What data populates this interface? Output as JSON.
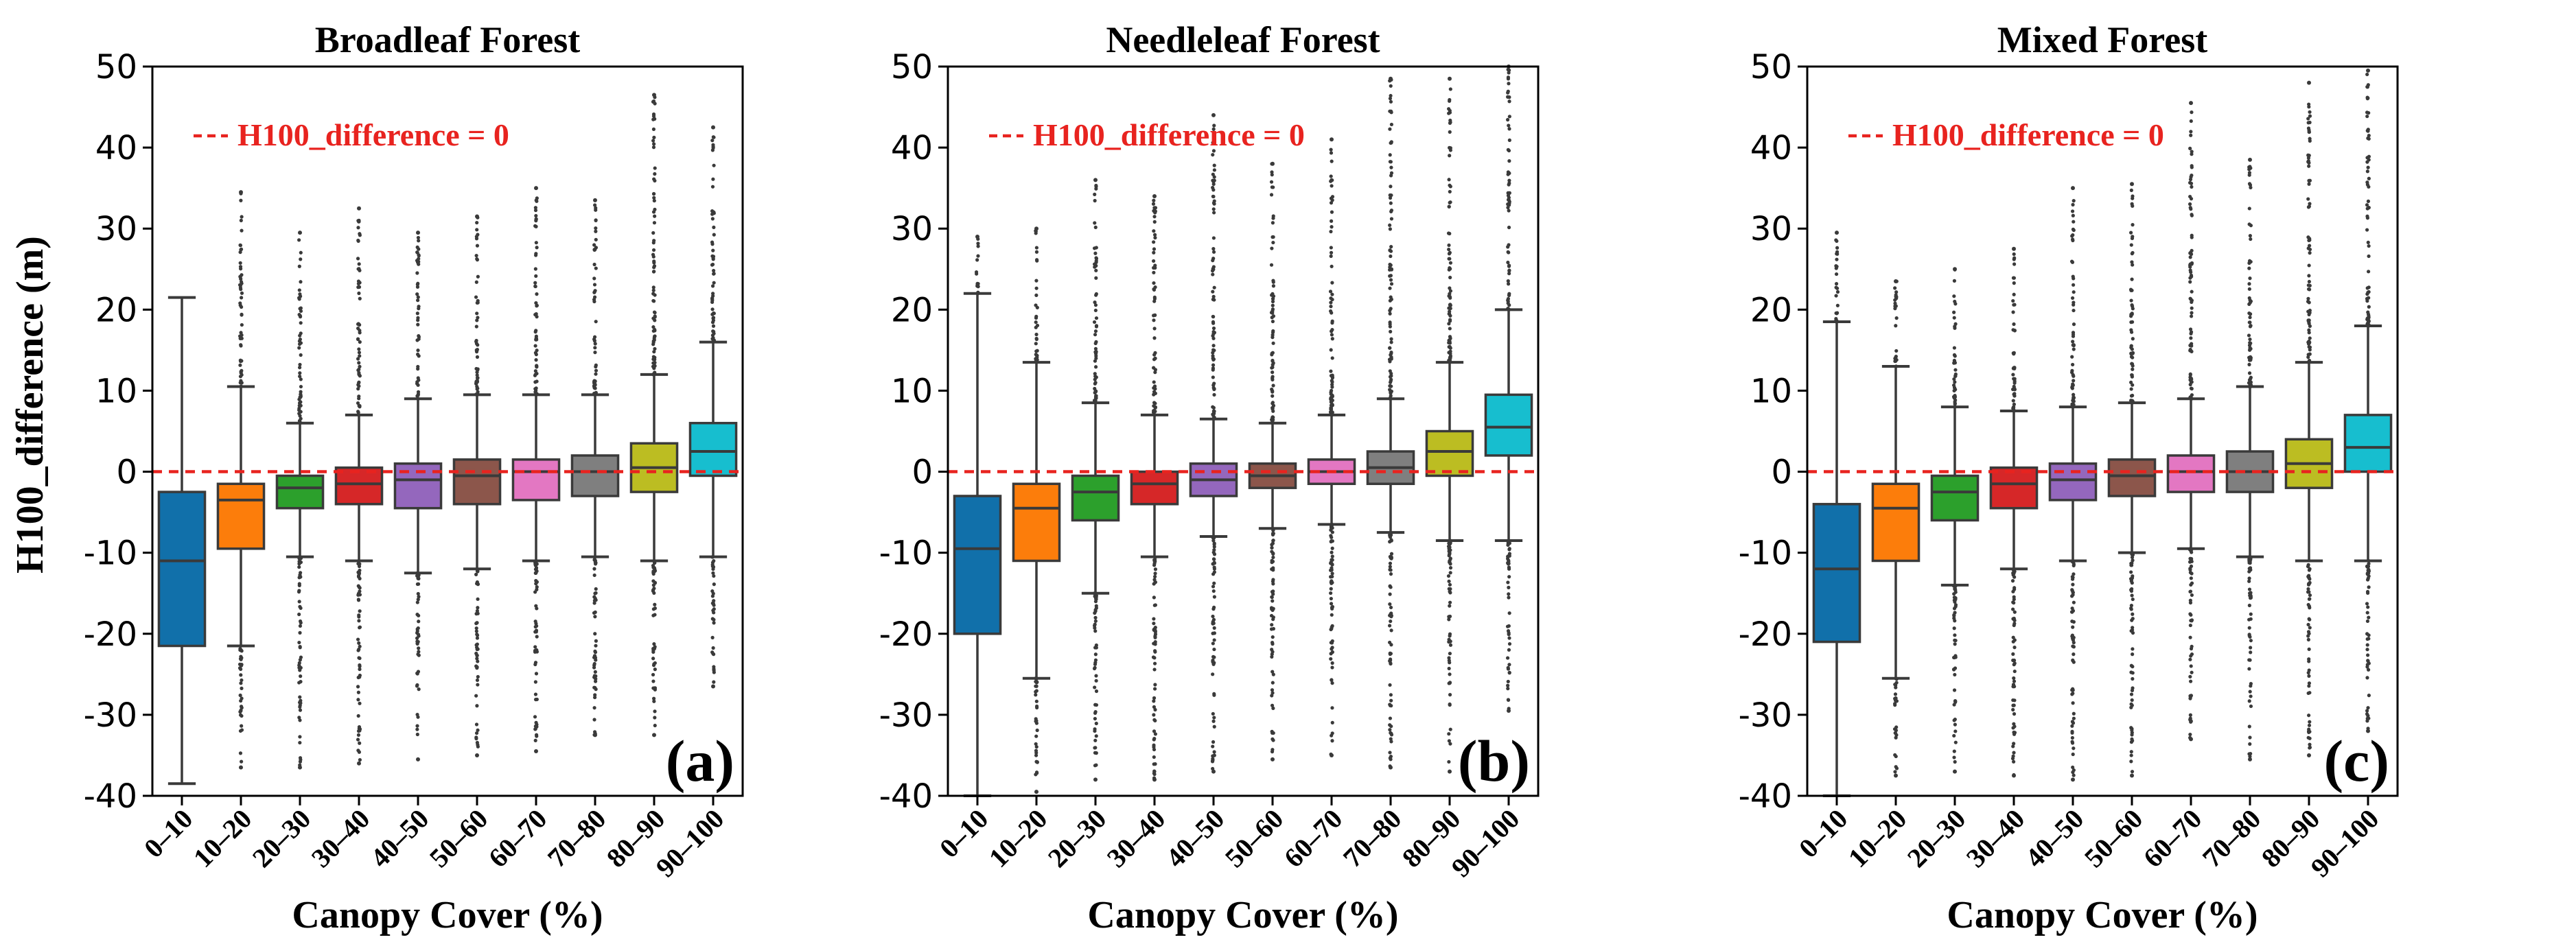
{
  "figure": {
    "ylabel": "H100_difference (m)",
    "xlabel": "Canopy Cover (%)",
    "legend_label": "H100_difference = 0",
    "reference_line_color": "#e8231f"
  },
  "chart_data": [
    {
      "type": "box",
      "title": "Broadleaf Forest",
      "panel_label": "(a)",
      "xlabel": "Canopy Cover (%)",
      "ylabel": "H100_difference (m)",
      "ylim": [
        -40,
        50
      ],
      "yticks": [
        -40,
        -30,
        -20,
        -10,
        0,
        10,
        20,
        30,
        40,
        50
      ],
      "categories": [
        "0–10",
        "10–20",
        "20–30",
        "30–40",
        "40–50",
        "50–60",
        "60–70",
        "70–80",
        "80–90",
        "90–100"
      ],
      "colors": [
        "#1170aa",
        "#fc7d0b",
        "#2ca02c",
        "#d62728",
        "#9467bd",
        "#8c564b",
        "#e377c2",
        "#7f7f7f",
        "#bcbd22",
        "#17becf"
      ],
      "boxes": [
        {
          "q1": -21.5,
          "median": -11,
          "q3": -2.5,
          "whisker_low": -38.5,
          "whisker_high": 21.5,
          "outlier_low": null,
          "outlier_high": null
        },
        {
          "q1": -9.5,
          "median": -3.5,
          "q3": -1.5,
          "whisker_low": -21.5,
          "whisker_high": 10.5,
          "outlier_low": -36.5,
          "outlier_high": 34.5
        },
        {
          "q1": -4.5,
          "median": -2,
          "q3": -0.5,
          "whisker_low": -10.5,
          "whisker_high": 6,
          "outlier_low": -36.5,
          "outlier_high": 29.5
        },
        {
          "q1": -4,
          "median": -1.5,
          "q3": 0.5,
          "whisker_low": -11,
          "whisker_high": 7,
          "outlier_low": -36,
          "outlier_high": 32.5
        },
        {
          "q1": -4.5,
          "median": -1,
          "q3": 1,
          "whisker_low": -12.5,
          "whisker_high": 9,
          "outlier_low": -35.5,
          "outlier_high": 29.5
        },
        {
          "q1": -4,
          "median": -0.5,
          "q3": 1.5,
          "whisker_low": -12,
          "whisker_high": 9.5,
          "outlier_low": -35,
          "outlier_high": 31.5
        },
        {
          "q1": -3.5,
          "median": 0,
          "q3": 1.5,
          "whisker_low": -11,
          "whisker_high": 9.5,
          "outlier_low": -34.5,
          "outlier_high": 35
        },
        {
          "q1": -3,
          "median": 0,
          "q3": 2,
          "whisker_low": -10.5,
          "whisker_high": 9.5,
          "outlier_low": -32.5,
          "outlier_high": 33.5
        },
        {
          "q1": -2.5,
          "median": 0.5,
          "q3": 3.5,
          "whisker_low": -11,
          "whisker_high": 12,
          "outlier_low": -32.5,
          "outlier_high": 46.5
        },
        {
          "q1": -0.5,
          "median": 2.5,
          "q3": 6,
          "whisker_low": -10.5,
          "whisker_high": 16,
          "outlier_low": -26.5,
          "outlier_high": 42.5
        }
      ]
    },
    {
      "type": "box",
      "title": "Needleleaf Forest",
      "panel_label": "(b)",
      "xlabel": "Canopy Cover (%)",
      "ylabel": "H100_difference (m)",
      "ylim": [
        -40,
        50
      ],
      "yticks": [
        -40,
        -30,
        -20,
        -10,
        0,
        10,
        20,
        30,
        40,
        50
      ],
      "categories": [
        "0–10",
        "10–20",
        "20–30",
        "30–40",
        "40–50",
        "50–60",
        "60–70",
        "70–80",
        "80–90",
        "90–100"
      ],
      "colors": [
        "#1170aa",
        "#fc7d0b",
        "#2ca02c",
        "#d62728",
        "#9467bd",
        "#8c564b",
        "#e377c2",
        "#7f7f7f",
        "#bcbd22",
        "#17becf"
      ],
      "boxes": [
        {
          "q1": -20,
          "median": -9.5,
          "q3": -3,
          "whisker_low": -40,
          "whisker_high": 22,
          "outlier_low": null,
          "outlier_high": 29
        },
        {
          "q1": -11,
          "median": -4.5,
          "q3": -1.5,
          "whisker_low": -25.5,
          "whisker_high": 13.5,
          "outlier_low": -39.5,
          "outlier_high": 30
        },
        {
          "q1": -6,
          "median": -2.5,
          "q3": -0.5,
          "whisker_low": -15,
          "whisker_high": 8.5,
          "outlier_low": -38,
          "outlier_high": 36
        },
        {
          "q1": -4,
          "median": -1.5,
          "q3": 0,
          "whisker_low": -10.5,
          "whisker_high": 7,
          "outlier_low": -38,
          "outlier_high": 34
        },
        {
          "q1": -3,
          "median": -1,
          "q3": 1,
          "whisker_low": -8,
          "whisker_high": 6.5,
          "outlier_low": -37,
          "outlier_high": 44
        },
        {
          "q1": -2,
          "median": -0.5,
          "q3": 1,
          "whisker_low": -7,
          "whisker_high": 6,
          "outlier_low": -35.5,
          "outlier_high": 38
        },
        {
          "q1": -1.5,
          "median": 0,
          "q3": 1.5,
          "whisker_low": -6.5,
          "whisker_high": 7,
          "outlier_low": -35,
          "outlier_high": 41
        },
        {
          "q1": -1.5,
          "median": 0.5,
          "q3": 2.5,
          "whisker_low": -7.5,
          "whisker_high": 9,
          "outlier_low": -36.5,
          "outlier_high": 48.5
        },
        {
          "q1": -0.5,
          "median": 2.5,
          "q3": 5,
          "whisker_low": -8.5,
          "whisker_high": 13.5,
          "outlier_low": -37,
          "outlier_high": 48.5
        },
        {
          "q1": 2,
          "median": 5.5,
          "q3": 9.5,
          "whisker_low": -8.5,
          "whisker_high": 20,
          "outlier_low": -29.5,
          "outlier_high": 50
        }
      ]
    },
    {
      "type": "box",
      "title": "Mixed Forest",
      "panel_label": "(c)",
      "xlabel": "Canopy Cover (%)",
      "ylabel": "H100_difference (m)",
      "ylim": [
        -40,
        50
      ],
      "yticks": [
        -40,
        -30,
        -20,
        -10,
        0,
        10,
        20,
        30,
        40,
        50
      ],
      "categories": [
        "0–10",
        "10–20",
        "20–30",
        "30–40",
        "40–50",
        "50–60",
        "60–70",
        "70–80",
        "80–90",
        "90–100"
      ],
      "colors": [
        "#1170aa",
        "#fc7d0b",
        "#2ca02c",
        "#d62728",
        "#9467bd",
        "#8c564b",
        "#e377c2",
        "#7f7f7f",
        "#bcbd22",
        "#17becf"
      ],
      "boxes": [
        {
          "q1": -21,
          "median": -12,
          "q3": -4,
          "whisker_low": -40,
          "whisker_high": 18.5,
          "outlier_low": null,
          "outlier_high": 29.5
        },
        {
          "q1": -11,
          "median": -4.5,
          "q3": -1.5,
          "whisker_low": -25.5,
          "whisker_high": 13,
          "outlier_low": -37.5,
          "outlier_high": 23.5
        },
        {
          "q1": -6,
          "median": -2.5,
          "q3": -0.5,
          "whisker_low": -14,
          "whisker_high": 8,
          "outlier_low": -37,
          "outlier_high": 25
        },
        {
          "q1": -4.5,
          "median": -1.5,
          "q3": 0.5,
          "whisker_low": -12,
          "whisker_high": 7.5,
          "outlier_low": -37.5,
          "outlier_high": 27.5
        },
        {
          "q1": -3.5,
          "median": -1,
          "q3": 1,
          "whisker_low": -11,
          "whisker_high": 8,
          "outlier_low": -38,
          "outlier_high": 35
        },
        {
          "q1": -3,
          "median": -0.5,
          "q3": 1.5,
          "whisker_low": -10,
          "whisker_high": 8.5,
          "outlier_low": -37.5,
          "outlier_high": 35.5
        },
        {
          "q1": -2.5,
          "median": 0,
          "q3": 2,
          "whisker_low": -9.5,
          "whisker_high": 9,
          "outlier_low": -33,
          "outlier_high": 45.5
        },
        {
          "q1": -2.5,
          "median": 0,
          "q3": 2.5,
          "whisker_low": -10.5,
          "whisker_high": 10.5,
          "outlier_low": -35.5,
          "outlier_high": 38.5
        },
        {
          "q1": -2,
          "median": 1,
          "q3": 4,
          "whisker_low": -11,
          "whisker_high": 13.5,
          "outlier_low": -35,
          "outlier_high": 48
        },
        {
          "q1": 0,
          "median": 3,
          "q3": 7,
          "whisker_low": -11,
          "whisker_high": 18,
          "outlier_low": -32,
          "outlier_high": 49.5
        }
      ]
    }
  ]
}
